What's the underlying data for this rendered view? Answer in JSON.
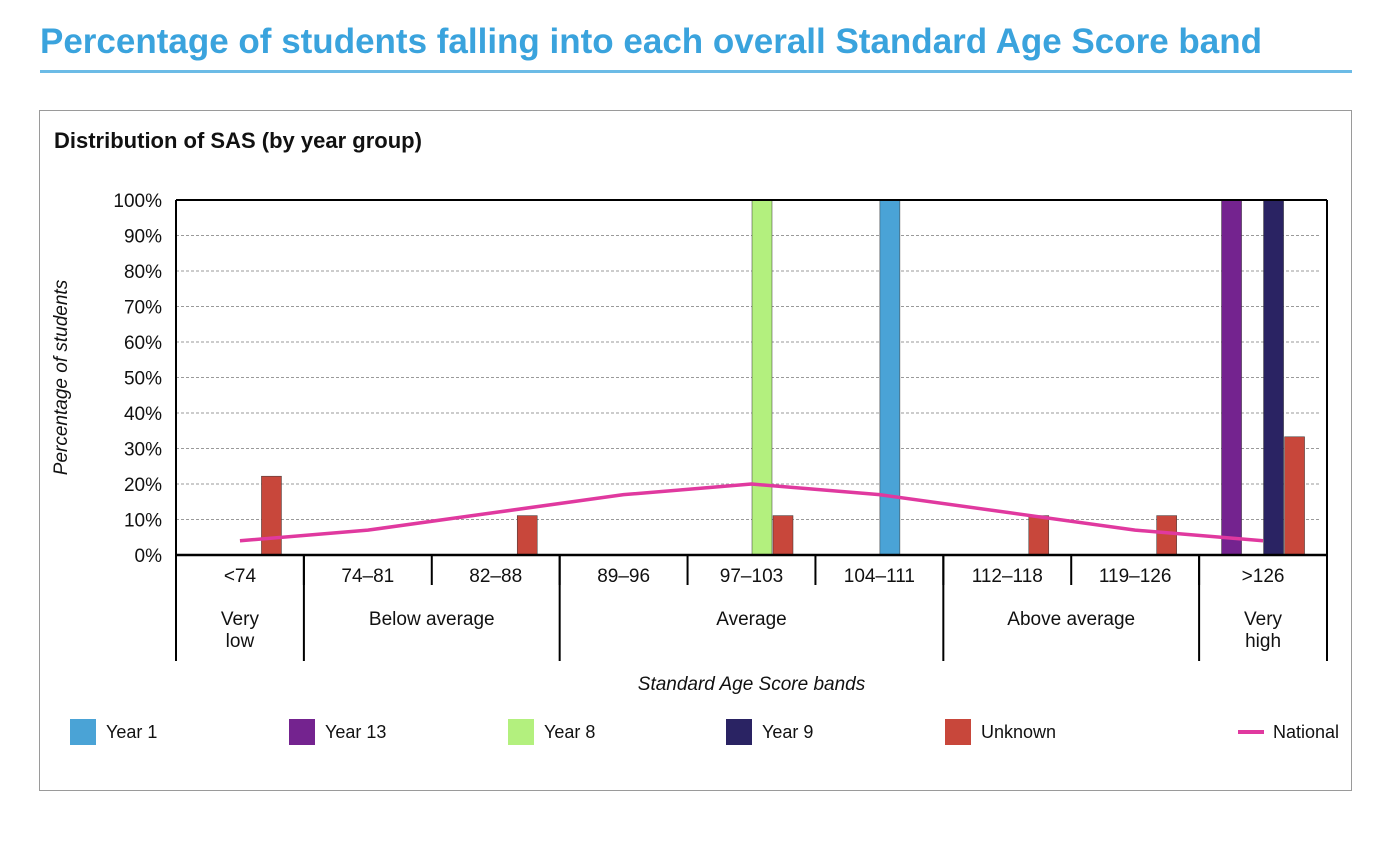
{
  "page_title": "Percentage of students falling into each overall Standard Age Score band",
  "chart_data": {
    "type": "bar",
    "title": "Distribution of SAS (by year group)",
    "xlabel": "Standard Age Score bands",
    "ylabel": "Percentage of students",
    "ylim": [
      0,
      100
    ],
    "y_ticks": [
      "0%",
      "10%",
      "20%",
      "30%",
      "40%",
      "50%",
      "60%",
      "70%",
      "80%",
      "90%",
      "100%"
    ],
    "y_tick_values": [
      0,
      10,
      20,
      30,
      40,
      50,
      60,
      70,
      80,
      90,
      100
    ],
    "grid": true,
    "categories": [
      "<74",
      "74–81",
      "82–88",
      "89–96",
      "97–103",
      "104–111",
      "112–118",
      "119–126",
      ">126"
    ],
    "groups": [
      {
        "label_lines": [
          "Very",
          "low"
        ],
        "span": 1
      },
      {
        "label_lines": [
          "Below average"
        ],
        "span": 2
      },
      {
        "label_lines": [
          "Average"
        ],
        "span": 3
      },
      {
        "label_lines": [
          "Above average"
        ],
        "span": 2
      },
      {
        "label_lines": [
          "Very",
          "high"
        ],
        "span": 1
      }
    ],
    "series": [
      {
        "name": "Year 1",
        "color": "#4aa3d6",
        "values": [
          0,
          0,
          0,
          0,
          0,
          100,
          0,
          0,
          0
        ]
      },
      {
        "name": "Year 13",
        "color": "#74238f",
        "values": [
          0,
          0,
          0,
          0,
          0,
          0,
          0,
          0,
          100
        ]
      },
      {
        "name": "Year 8",
        "color": "#b3f07e",
        "values": [
          0,
          0,
          0,
          0,
          100,
          0,
          0,
          0,
          0
        ]
      },
      {
        "name": "Year 9",
        "color": "#2a2363",
        "values": [
          0,
          0,
          0,
          0,
          0,
          0,
          0,
          0,
          100
        ]
      },
      {
        "name": "Unknown",
        "color": "#c8473b",
        "values": [
          22.2,
          0,
          11.1,
          0,
          11.1,
          0,
          11.1,
          11.1,
          33.3
        ]
      }
    ],
    "line_series": {
      "name": "National",
      "color": "#e0399f",
      "values": [
        4,
        7,
        12,
        17,
        20,
        17,
        12,
        7,
        4
      ]
    },
    "legend_placement": "bottom"
  }
}
